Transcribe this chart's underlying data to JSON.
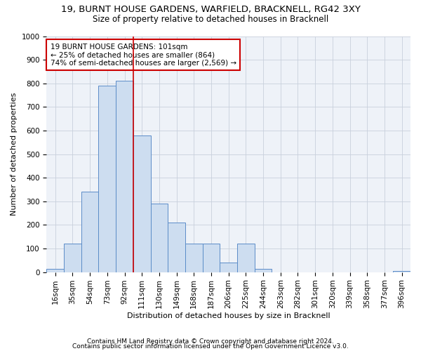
{
  "title1": "19, BURNT HOUSE GARDENS, WARFIELD, BRACKNELL, RG42 3XY",
  "title2": "Size of property relative to detached houses in Bracknell",
  "xlabel": "Distribution of detached houses by size in Bracknell",
  "ylabel": "Number of detached properties",
  "categories": [
    "16sqm",
    "35sqm",
    "54sqm",
    "73sqm",
    "92sqm",
    "111sqm",
    "130sqm",
    "149sqm",
    "168sqm",
    "187sqm",
    "206sqm",
    "225sqm",
    "244sqm",
    "263sqm",
    "282sqm",
    "301sqm",
    "320sqm",
    "339sqm",
    "358sqm",
    "377sqm",
    "396sqm"
  ],
  "values": [
    15,
    120,
    340,
    790,
    810,
    580,
    290,
    210,
    120,
    120,
    40,
    120,
    15,
    0,
    0,
    0,
    0,
    0,
    0,
    0,
    5
  ],
  "bar_color": "#cdddf0",
  "bar_edgecolor": "#5b8cc8",
  "property_line_x": 4.5,
  "annotation_text": "19 BURNT HOUSE GARDENS: 101sqm\n← 25% of detached houses are smaller (864)\n74% of semi-detached houses are larger (2,569) →",
  "annotation_box_color": "#ffffff",
  "annotation_box_edgecolor": "#cc0000",
  "footnote1": "Contains HM Land Registry data © Crown copyright and database right 2024.",
  "footnote2": "Contains public sector information licensed under the Open Government Licence v3.0.",
  "grid_color": "#c8d0dc",
  "bg_color": "#eef2f8",
  "ylim": [
    0,
    1000
  ],
  "yticks": [
    0,
    100,
    200,
    300,
    400,
    500,
    600,
    700,
    800,
    900,
    1000
  ],
  "title1_fontsize": 9.5,
  "title2_fontsize": 8.5,
  "xlabel_fontsize": 8,
  "ylabel_fontsize": 8,
  "tick_fontsize": 7.5,
  "annotation_fontsize": 7.5,
  "footnote_fontsize": 6.5
}
